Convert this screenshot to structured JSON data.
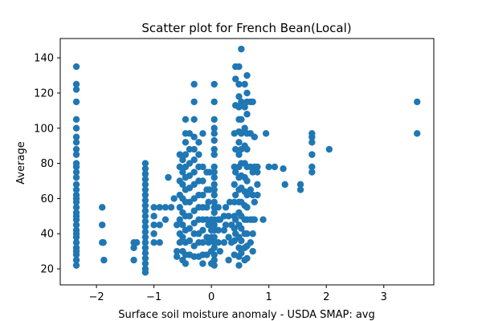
{
  "chart_data": {
    "type": "scatter",
    "title": "Scatter plot for French Bean(Local)",
    "xlabel": "Surface soil moisture anomaly  - USDA SMAP: avg",
    "ylabel": "Average",
    "xlim": [
      -2.63,
      3.87
    ],
    "ylim": [
      10.9,
      151.0
    ],
    "xticks": [
      {
        "value": -2,
        "label": "−2"
      },
      {
        "value": -1,
        "label": "−1"
      },
      {
        "value": 0,
        "label": "0"
      },
      {
        "value": 1,
        "label": "1"
      },
      {
        "value": 2,
        "label": "2"
      },
      {
        "value": 3,
        "label": "3"
      }
    ],
    "yticks": [
      {
        "value": 20,
        "label": "20"
      },
      {
        "value": 40,
        "label": "40"
      },
      {
        "value": 60,
        "label": "60"
      },
      {
        "value": 80,
        "label": "80"
      },
      {
        "value": 100,
        "label": "100"
      },
      {
        "value": 120,
        "label": "120"
      },
      {
        "value": 140,
        "label": "140"
      }
    ],
    "grid": false,
    "legend": "none",
    "marker_color": "#1f77b4",
    "points": [
      [
        -2.35,
        135
      ],
      [
        -2.35,
        125
      ],
      [
        -2.35,
        122
      ],
      [
        -2.35,
        115
      ],
      [
        -2.35,
        105
      ],
      [
        -2.35,
        100
      ],
      [
        -2.35,
        95
      ],
      [
        -2.35,
        92
      ],
      [
        -2.35,
        88
      ],
      [
        -2.35,
        85
      ],
      [
        -2.35,
        80
      ],
      [
        -2.35,
        78
      ],
      [
        -2.35,
        75
      ],
      [
        -2.35,
        72
      ],
      [
        -2.35,
        68
      ],
      [
        -2.35,
        65
      ],
      [
        -2.35,
        62
      ],
      [
        -2.35,
        60
      ],
      [
        -2.35,
        58
      ],
      [
        -2.35,
        55
      ],
      [
        -2.35,
        52
      ],
      [
        -2.35,
        50
      ],
      [
        -2.35,
        48
      ],
      [
        -2.35,
        45
      ],
      [
        -2.35,
        42
      ],
      [
        -2.35,
        40
      ],
      [
        -2.35,
        38
      ],
      [
        -2.35,
        35
      ],
      [
        -2.35,
        32
      ],
      [
        -2.35,
        30
      ],
      [
        -2.35,
        28
      ],
      [
        -2.35,
        25
      ],
      [
        -2.35,
        22
      ],
      [
        -1.9,
        55
      ],
      [
        -1.9,
        45
      ],
      [
        -1.9,
        35
      ],
      [
        -1.88,
        35
      ],
      [
        -1.87,
        25
      ],
      [
        -1.35,
        35
      ],
      [
        -1.35,
        32
      ],
      [
        -1.3,
        35
      ],
      [
        -1.35,
        25
      ],
      [
        -1.15,
        80
      ],
      [
        -1.15,
        77
      ],
      [
        -1.15,
        74
      ],
      [
        -1.15,
        71
      ],
      [
        -1.15,
        68
      ],
      [
        -1.15,
        65
      ],
      [
        -1.15,
        62
      ],
      [
        -1.15,
        59
      ],
      [
        -1.15,
        56
      ],
      [
        -1.15,
        53
      ],
      [
        -1.15,
        50
      ],
      [
        -1.15,
        47
      ],
      [
        -1.15,
        44
      ],
      [
        -1.15,
        41
      ],
      [
        -1.15,
        38
      ],
      [
        -1.15,
        35
      ],
      [
        -1.15,
        32
      ],
      [
        -1.15,
        29
      ],
      [
        -1.15,
        26
      ],
      [
        -1.15,
        23
      ],
      [
        -1.15,
        20
      ],
      [
        -1.15,
        18
      ],
      [
        -1.0,
        55
      ],
      [
        -1.0,
        50
      ],
      [
        -1.0,
        45
      ],
      [
        -1.0,
        40
      ],
      [
        -1.0,
        35
      ],
      [
        -0.9,
        55
      ],
      [
        -0.9,
        45
      ],
      [
        -0.9,
        35
      ],
      [
        -0.8,
        55
      ],
      [
        -0.8,
        48
      ],
      [
        -0.75,
        72
      ],
      [
        -0.7,
        55
      ],
      [
        -0.65,
        60
      ],
      [
        -0.6,
        45
      ],
      [
        -0.6,
        30
      ],
      [
        -0.6,
        27
      ],
      [
        -0.55,
        85
      ],
      [
        -0.55,
        78
      ],
      [
        -0.55,
        70
      ],
      [
        -0.55,
        62
      ],
      [
        -0.55,
        55
      ],
      [
        -0.55,
        48
      ],
      [
        -0.55,
        40
      ],
      [
        -0.55,
        35
      ],
      [
        -0.5,
        82
      ],
      [
        -0.5,
        75
      ],
      [
        -0.5,
        68
      ],
      [
        -0.5,
        60
      ],
      [
        -0.5,
        52
      ],
      [
        -0.5,
        45
      ],
      [
        -0.5,
        38
      ],
      [
        -0.5,
        30
      ],
      [
        -0.5,
        25
      ],
      [
        -0.45,
        105
      ],
      [
        -0.45,
        97
      ],
      [
        -0.45,
        92
      ],
      [
        -0.45,
        85
      ],
      [
        -0.45,
        78
      ],
      [
        -0.45,
        72
      ],
      [
        -0.45,
        65
      ],
      [
        -0.45,
        58
      ],
      [
        -0.45,
        50
      ],
      [
        -0.45,
        42
      ],
      [
        -0.45,
        35
      ],
      [
        -0.45,
        28
      ],
      [
        -0.45,
        23
      ],
      [
        -0.38,
        97
      ],
      [
        -0.38,
        88
      ],
      [
        -0.38,
        80
      ],
      [
        -0.38,
        73
      ],
      [
        -0.38,
        66
      ],
      [
        -0.38,
        58
      ],
      [
        -0.38,
        50
      ],
      [
        -0.38,
        43
      ],
      [
        -0.38,
        36
      ],
      [
        -0.38,
        28
      ],
      [
        -0.3,
        125
      ],
      [
        -0.3,
        115
      ],
      [
        -0.3,
        105
      ],
      [
        -0.3,
        95
      ],
      [
        -0.3,
        88
      ],
      [
        -0.3,
        82
      ],
      [
        -0.3,
        75
      ],
      [
        -0.3,
        68
      ],
      [
        -0.3,
        60
      ],
      [
        -0.3,
        53
      ],
      [
        -0.3,
        46
      ],
      [
        -0.3,
        40
      ],
      [
        -0.3,
        33
      ],
      [
        -0.3,
        27
      ],
      [
        -0.22,
        92
      ],
      [
        -0.22,
        85
      ],
      [
        -0.22,
        78
      ],
      [
        -0.22,
        70
      ],
      [
        -0.22,
        62
      ],
      [
        -0.22,
        55
      ],
      [
        -0.22,
        48
      ],
      [
        -0.22,
        40
      ],
      [
        -0.22,
        35
      ],
      [
        -0.22,
        27
      ],
      [
        -0.15,
        97
      ],
      [
        -0.15,
        78
      ],
      [
        -0.15,
        70
      ],
      [
        -0.15,
        62
      ],
      [
        -0.15,
        55
      ],
      [
        -0.15,
        48
      ],
      [
        -0.15,
        42
      ],
      [
        -0.15,
        35
      ],
      [
        -0.15,
        28
      ],
      [
        -0.15,
        23
      ],
      [
        -0.08,
        75
      ],
      [
        -0.08,
        65
      ],
      [
        -0.08,
        55
      ],
      [
        -0.08,
        48
      ],
      [
        -0.08,
        38
      ],
      [
        -0.08,
        28
      ],
      [
        -0.05,
        58
      ],
      [
        -0.05,
        45
      ],
      [
        -0.05,
        35
      ],
      [
        -0.03,
        65
      ],
      [
        -0.03,
        75
      ],
      [
        0.0,
        48
      ],
      [
        0.0,
        42
      ],
      [
        0.0,
        38
      ],
      [
        0.0,
        30
      ],
      [
        0.0,
        23
      ],
      [
        0.05,
        125
      ],
      [
        0.05,
        115
      ],
      [
        0.05,
        105
      ],
      [
        0.05,
        100
      ],
      [
        0.05,
        97
      ],
      [
        0.05,
        93
      ],
      [
        0.05,
        88
      ],
      [
        0.05,
        85
      ],
      [
        0.05,
        78
      ],
      [
        0.05,
        75
      ],
      [
        0.05,
        72
      ],
      [
        0.05,
        68
      ],
      [
        0.05,
        65
      ],
      [
        0.05,
        62
      ],
      [
        0.05,
        58
      ],
      [
        0.05,
        55
      ],
      [
        0.05,
        52
      ],
      [
        0.05,
        48
      ],
      [
        0.05,
        45
      ],
      [
        0.05,
        42
      ],
      [
        0.05,
        38
      ],
      [
        0.05,
        35
      ],
      [
        0.05,
        32
      ],
      [
        0.05,
        28
      ],
      [
        0.05,
        25
      ],
      [
        0.05,
        22
      ],
      [
        0.12,
        55
      ],
      [
        0.12,
        48
      ],
      [
        0.12,
        42
      ],
      [
        0.12,
        35
      ],
      [
        0.15,
        48
      ],
      [
        0.15,
        30
      ],
      [
        0.22,
        50
      ],
      [
        0.22,
        42
      ],
      [
        0.22,
        35
      ],
      [
        0.25,
        55
      ],
      [
        0.25,
        45
      ],
      [
        0.3,
        50
      ],
      [
        0.3,
        38
      ],
      [
        0.3,
        25
      ],
      [
        0.32,
        58
      ],
      [
        0.35,
        45
      ],
      [
        0.35,
        35
      ],
      [
        0.4,
        97
      ],
      [
        0.4,
        78
      ],
      [
        0.4,
        68
      ],
      [
        0.4,
        58
      ],
      [
        0.4,
        50
      ],
      [
        0.4,
        43
      ],
      [
        0.4,
        36
      ],
      [
        0.4,
        28
      ],
      [
        0.42,
        135
      ],
      [
        0.42,
        128
      ],
      [
        0.42,
        113
      ],
      [
        0.42,
        88
      ],
      [
        0.42,
        75
      ],
      [
        0.42,
        62
      ],
      [
        0.42,
        48
      ],
      [
        0.42,
        40
      ],
      [
        0.48,
        135
      ],
      [
        0.48,
        125
      ],
      [
        0.48,
        118
      ],
      [
        0.48,
        112
      ],
      [
        0.48,
        105
      ],
      [
        0.48,
        98
      ],
      [
        0.48,
        92
      ],
      [
        0.48,
        85
      ],
      [
        0.48,
        78
      ],
      [
        0.48,
        72
      ],
      [
        0.48,
        65
      ],
      [
        0.48,
        58
      ],
      [
        0.48,
        52
      ],
      [
        0.48,
        45
      ],
      [
        0.48,
        38
      ],
      [
        0.48,
        32
      ],
      [
        0.48,
        27
      ],
      [
        0.48,
        22
      ],
      [
        0.52,
        145
      ],
      [
        0.52,
        115
      ],
      [
        0.52,
        105
      ],
      [
        0.52,
        97
      ],
      [
        0.52,
        88
      ],
      [
        0.52,
        80
      ],
      [
        0.52,
        73
      ],
      [
        0.52,
        66
      ],
      [
        0.52,
        58
      ],
      [
        0.52,
        50
      ],
      [
        0.52,
        43
      ],
      [
        0.52,
        36
      ],
      [
        0.52,
        29
      ],
      [
        0.58,
        125
      ],
      [
        0.58,
        112
      ],
      [
        0.58,
        100
      ],
      [
        0.58,
        90
      ],
      [
        0.58,
        80
      ],
      [
        0.58,
        72
      ],
      [
        0.58,
        64
      ],
      [
        0.58,
        56
      ],
      [
        0.58,
        48
      ],
      [
        0.58,
        40
      ],
      [
        0.58,
        32
      ],
      [
        0.58,
        25
      ],
      [
        0.62,
        130
      ],
      [
        0.62,
        120
      ],
      [
        0.62,
        115
      ],
      [
        0.62,
        108
      ],
      [
        0.62,
        97
      ],
      [
        0.62,
        88
      ],
      [
        0.62,
        78
      ],
      [
        0.62,
        70
      ],
      [
        0.62,
        62
      ],
      [
        0.62,
        55
      ],
      [
        0.62,
        48
      ],
      [
        0.62,
        40
      ],
      [
        0.62,
        33
      ],
      [
        0.62,
        26
      ],
      [
        0.68,
        115
      ],
      [
        0.68,
        97
      ],
      [
        0.68,
        78
      ],
      [
        0.68,
        65
      ],
      [
        0.68,
        48
      ],
      [
        0.68,
        35
      ],
      [
        0.72,
        115
      ],
      [
        0.72,
        75
      ],
      [
        0.72,
        62
      ],
      [
        0.72,
        48
      ],
      [
        0.72,
        40
      ],
      [
        0.72,
        30
      ],
      [
        0.75,
        95
      ],
      [
        0.75,
        58
      ],
      [
        0.75,
        78
      ],
      [
        0.75,
        48
      ],
      [
        0.8,
        78
      ],
      [
        0.8,
        75
      ],
      [
        0.8,
        68
      ],
      [
        0.8,
        62
      ],
      [
        0.9,
        48
      ],
      [
        0.95,
        97
      ],
      [
        1.0,
        78
      ],
      [
        1.1,
        78
      ],
      [
        1.25,
        77
      ],
      [
        1.28,
        68
      ],
      [
        1.55,
        65
      ],
      [
        1.55,
        68
      ],
      [
        1.75,
        97
      ],
      [
        1.75,
        95
      ],
      [
        1.75,
        92
      ],
      [
        1.75,
        85
      ],
      [
        1.75,
        78
      ],
      [
        1.75,
        75
      ],
      [
        2.05,
        88
      ],
      [
        3.58,
        115
      ],
      [
        3.58,
        97
      ]
    ]
  }
}
